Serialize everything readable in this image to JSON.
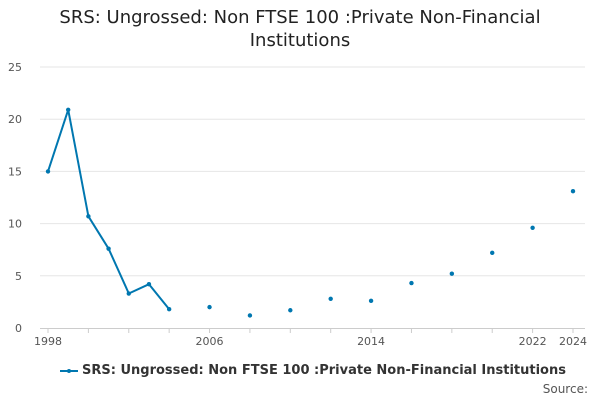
{
  "chart_data": {
    "type": "line",
    "title": "SRS: Ungrossed: Non FTSE 100 :Private Non-Financial Institutions",
    "title_lines": [
      "SRS: Ungrossed: Non FTSE 100 :Private Non-Financial",
      "Institutions"
    ],
    "xlabel": "",
    "ylabel": "",
    "xlim": [
      1998,
      2024
    ],
    "ylim": [
      0,
      25
    ],
    "y_ticks": [
      0,
      5,
      10,
      15,
      20,
      25
    ],
    "x_tick_labels": [
      "1998",
      "2006",
      "2014",
      "2022",
      "2024"
    ],
    "x_tick_positions": [
      1998,
      2000,
      2002,
      2004,
      2006,
      2008,
      2010,
      2012,
      2014,
      2016,
      2018,
      2020,
      2022,
      2024
    ],
    "grid": "horizontal",
    "legend_position": "bottom",
    "series": [
      {
        "name": "SRS: Ungrossed: Non FTSE 100 :Private Non-Financial Institutions",
        "color": "#0077b0",
        "points": [
          {
            "x": 1998,
            "y": 15.0
          },
          {
            "x": 1999,
            "y": 20.9
          },
          {
            "x": 2000,
            "y": 10.7
          },
          {
            "x": 2001,
            "y": 7.6
          },
          {
            "x": 2002,
            "y": 3.3
          },
          {
            "x": 2003,
            "y": 4.2
          },
          {
            "x": 2004,
            "y": 1.8
          },
          {
            "x": 2006,
            "y": 2.0
          },
          {
            "x": 2008,
            "y": 1.2
          },
          {
            "x": 2010,
            "y": 1.7
          },
          {
            "x": 2012,
            "y": 2.8
          },
          {
            "x": 2014,
            "y": 2.6
          },
          {
            "x": 2016,
            "y": 4.3
          },
          {
            "x": 2018,
            "y": 5.2
          },
          {
            "x": 2020,
            "y": 7.2
          },
          {
            "x": 2022,
            "y": 9.6
          },
          {
            "x": 2024,
            "y": 13.1
          }
        ]
      }
    ]
  },
  "legend": {
    "label": "SRS: Ungrossed: Non FTSE 100 :Private Non-Financial Institutions"
  },
  "footer": {
    "source": "Source:"
  }
}
